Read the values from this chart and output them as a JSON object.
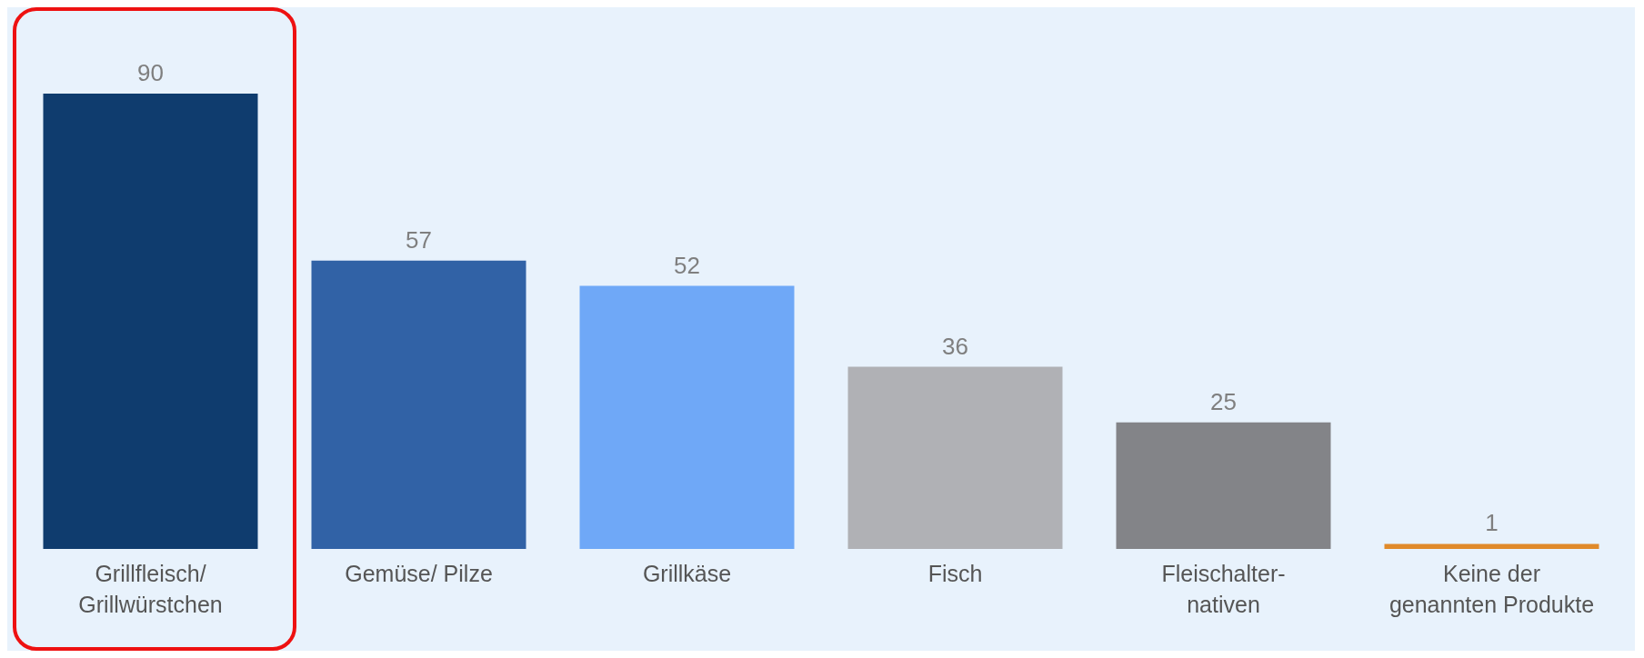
{
  "chart_data": {
    "type": "bar",
    "categories": [
      "Grillfleisch/\nGrillwürstchen",
      "Gemüse/ Pilze",
      "Grillkäse",
      "Fisch",
      "Fleischalter-\nnativen",
      "Keine der\ngenannten Produkte"
    ],
    "values": [
      90,
      57,
      52,
      36,
      25,
      1
    ],
    "colors": [
      "#0f3c6e",
      "#3162a6",
      "#6fa8f7",
      "#b0b1b5",
      "#838488",
      "#e08a2a"
    ],
    "data_labels": true
  }
}
